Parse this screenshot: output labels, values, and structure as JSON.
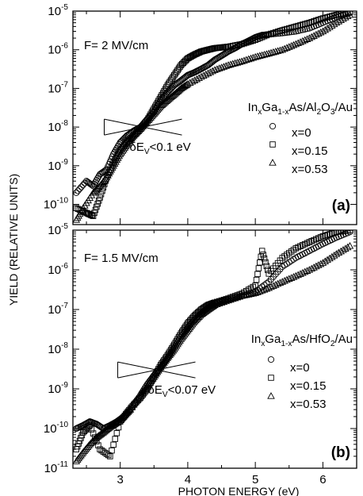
{
  "chart_data": {
    "type": "scatter",
    "shared_x_axis": {
      "label": "PHOTON ENERGY (eV)",
      "ticks": [
        3,
        4,
        5,
        6
      ],
      "range": [
        2.3,
        6.5
      ]
    },
    "shared_y_axis_label": "YIELD (RELATIVE UNITS)",
    "y_scale": "log",
    "panels": [
      {
        "id": "(a)",
        "field_label": "F= 2 MV/cm",
        "legend_title_parts": [
          "In",
          "x",
          "Ga",
          "1-x",
          "As/Al",
          "2",
          "O",
          "3",
          "/Au"
        ],
        "annotation_parts": [
          "δE",
          "V",
          "<0.1 eV"
        ],
        "annotation_point": {
          "x": 3.35,
          "y": 1e-08
        },
        "ylim": [
          3e-11,
          1e-05
        ],
        "y_ticks": [
          "10-5",
          "10-6",
          "10-7",
          "10-8",
          "10-9",
          "10-10"
        ],
        "series": [
          {
            "name": "x=0",
            "marker": "circle",
            "points": [
              [
                2.35,
                2e-10
              ],
              [
                2.5,
                4e-10
              ],
              [
                2.6,
                3e-10
              ],
              [
                2.7,
                6e-10
              ],
              [
                2.8,
                8e-10
              ],
              [
                2.9,
                2e-09
              ],
              [
                3.0,
                4e-09
              ],
              [
                3.1,
                6e-09
              ],
              [
                3.2,
                8e-09
              ],
              [
                3.3,
                1e-08
              ],
              [
                3.4,
                1.6e-08
              ],
              [
                3.5,
                2.5e-08
              ],
              [
                3.6,
                5e-08
              ],
              [
                3.7,
                8e-08
              ],
              [
                3.8,
                1.2e-07
              ],
              [
                3.9,
                1.6e-07
              ],
              [
                4.0,
                2.2e-07
              ],
              [
                4.1,
                2.6e-07
              ],
              [
                4.2,
                3.2e-07
              ],
              [
                4.3,
                4e-07
              ],
              [
                4.4,
                5.5e-07
              ],
              [
                4.5,
                7e-07
              ],
              [
                4.6,
                9e-07
              ],
              [
                4.7,
                1.1e-06
              ],
              [
                4.8,
                1.4e-06
              ],
              [
                4.9,
                1.7e-06
              ],
              [
                5.0,
                2.1e-06
              ],
              [
                5.1,
                2.4e-06
              ],
              [
                5.2,
                2.5e-06
              ],
              [
                5.4,
                2.7e-06
              ],
              [
                5.6,
                3e-06
              ],
              [
                5.8,
                3.6e-06
              ],
              [
                6.0,
                5e-06
              ],
              [
                6.2,
                7e-06
              ],
              [
                6.4,
                9e-06
              ]
            ]
          },
          {
            "name": "x=0.15",
            "marker": "square",
            "points": [
              [
                2.35,
                8e-11
              ],
              [
                2.5,
                6e-11
              ],
              [
                2.6,
                5e-11
              ],
              [
                2.7,
                1.5e-10
              ],
              [
                2.8,
                5e-10
              ],
              [
                2.9,
                1.2e-09
              ],
              [
                3.0,
                2.5e-09
              ],
              [
                3.1,
                4e-09
              ],
              [
                3.2,
                6e-09
              ],
              [
                3.3,
                9e-09
              ],
              [
                3.4,
                1.5e-08
              ],
              [
                3.5,
                3e-08
              ],
              [
                3.6,
                6e-08
              ],
              [
                3.7,
                1.2e-07
              ],
              [
                3.8,
                2.2e-07
              ],
              [
                3.9,
                4e-07
              ],
              [
                4.0,
                6e-07
              ],
              [
                4.1,
                7.5e-07
              ],
              [
                4.2,
                9e-07
              ],
              [
                4.3,
                1e-06
              ],
              [
                4.4,
                1.1e-06
              ],
              [
                4.5,
                1.15e-06
              ],
              [
                4.6,
                1.2e-06
              ],
              [
                4.8,
                1.4e-06
              ],
              [
                5.0,
                1.8e-06
              ],
              [
                5.2,
                2.5e-06
              ],
              [
                5.4,
                3.2e-06
              ],
              [
                5.6,
                4e-06
              ],
              [
                5.8,
                5e-06
              ],
              [
                6.0,
                6.5e-06
              ],
              [
                6.2,
                8e-06
              ],
              [
                6.4,
                9.5e-06
              ]
            ]
          },
          {
            "name": "x=0.53",
            "marker": "triangle",
            "points": [
              [
                2.35,
                4e-11
              ],
              [
                2.45,
                8e-11
              ],
              [
                2.6,
                2e-10
              ],
              [
                2.7,
                3e-10
              ],
              [
                2.8,
                5e-10
              ],
              [
                2.9,
                1e-09
              ],
              [
                3.0,
                2e-09
              ],
              [
                3.1,
                3.5e-09
              ],
              [
                3.2,
                6e-09
              ],
              [
                3.3,
                9e-09
              ],
              [
                3.4,
                1.4e-08
              ],
              [
                3.5,
                2.2e-08
              ],
              [
                3.6,
                3.5e-08
              ],
              [
                3.7,
                5e-08
              ],
              [
                3.8,
                7e-08
              ],
              [
                3.9,
                1e-07
              ],
              [
                4.0,
                1.3e-07
              ],
              [
                4.2,
                2e-07
              ],
              [
                4.4,
                3e-07
              ],
              [
                4.6,
                4e-07
              ],
              [
                4.8,
                5e-07
              ],
              [
                5.0,
                6.5e-07
              ],
              [
                5.2,
                8e-07
              ],
              [
                5.4,
                1e-06
              ],
              [
                5.6,
                1.4e-06
              ],
              [
                5.8,
                2e-06
              ],
              [
                6.0,
                3e-06
              ],
              [
                6.2,
                5e-06
              ],
              [
                6.4,
                8e-06
              ]
            ]
          }
        ]
      },
      {
        "id": "(b)",
        "field_label": "F= 1.5 MV/cm",
        "legend_title_parts": [
          "In",
          "x",
          "Ga",
          "1-x",
          "As/HfO",
          "2",
          "/Au"
        ],
        "annotation_parts": [
          "δE",
          "V",
          "<0.07 eV"
        ],
        "annotation_point": {
          "x": 3.55,
          "y": 3e-09
        },
        "ylim": [
          1e-11,
          1e-05
        ],
        "y_ticks": [
          "10-5",
          "10-6",
          "10-7",
          "10-8",
          "10-9",
          "10-10",
          "10-11"
        ],
        "series": [
          {
            "name": "x=0",
            "marker": "circle",
            "points": [
              [
                2.35,
                1e-10
              ],
              [
                2.45,
                1.2e-10
              ],
              [
                2.55,
                1.5e-10
              ],
              [
                2.65,
                1.3e-10
              ],
              [
                2.75,
                1e-10
              ],
              [
                2.85,
                1.2e-10
              ],
              [
                2.95,
                1.5e-10
              ],
              [
                3.05,
                2e-10
              ],
              [
                3.15,
                3e-10
              ],
              [
                3.3,
                7e-10
              ],
              [
                3.4,
                1.3e-09
              ],
              [
                3.5,
                2.2e-09
              ],
              [
                3.6,
                3.5e-09
              ],
              [
                3.7,
                6e-09
              ],
              [
                3.8,
                1.1e-08
              ],
              [
                3.9,
                2e-08
              ],
              [
                4.0,
                3.5e-08
              ],
              [
                4.1,
                5.5e-08
              ],
              [
                4.2,
                8e-08
              ],
              [
                4.3,
                1.1e-07
              ],
              [
                4.4,
                1.4e-07
              ],
              [
                4.5,
                1.6e-07
              ],
              [
                4.6,
                1.8e-07
              ],
              [
                4.8,
                2.2e-07
              ],
              [
                5.0,
                2.8e-07
              ],
              [
                5.2,
                5e-07
              ],
              [
                5.4,
                1.2e-06
              ],
              [
                5.6,
                2e-06
              ],
              [
                5.8,
                3e-06
              ],
              [
                6.0,
                4.5e-06
              ],
              [
                6.2,
                6.5e-06
              ],
              [
                6.4,
                9e-06
              ]
            ]
          },
          {
            "name": "x=0.15",
            "marker": "square",
            "points": [
              [
                2.35,
                3e-11
              ],
              [
                2.45,
                8e-11
              ],
              [
                2.55,
                1.2e-10
              ],
              [
                2.7,
                3e-11
              ],
              [
                2.85,
                2e-11
              ],
              [
                3.0,
                1.5e-10
              ],
              [
                3.1,
                2.5e-10
              ],
              [
                3.2,
                4e-10
              ],
              [
                3.3,
                6e-10
              ],
              [
                3.4,
                1e-09
              ],
              [
                3.5,
                2e-09
              ],
              [
                3.6,
                4e-09
              ],
              [
                3.7,
                7e-09
              ],
              [
                3.8,
                1.3e-08
              ],
              [
                3.9,
                2.5e-08
              ],
              [
                4.0,
                4.5e-08
              ],
              [
                4.1,
                7e-08
              ],
              [
                4.2,
                1e-07
              ],
              [
                4.3,
                1.3e-07
              ],
              [
                4.4,
                1.5e-07
              ],
              [
                4.6,
                1.9e-07
              ],
              [
                4.8,
                2.5e-07
              ],
              [
                5.0,
                4e-07
              ],
              [
                5.1,
                3e-06
              ],
              [
                5.2,
                8e-07
              ],
              [
                5.4,
                2e-06
              ],
              [
                5.6,
                3.5e-06
              ],
              [
                5.8,
                5e-06
              ],
              [
                6.0,
                7e-06
              ],
              [
                6.2,
                9e-06
              ],
              [
                6.4,
                1e-05
              ]
            ]
          },
          {
            "name": "x=0.53",
            "marker": "triangle",
            "points": [
              [
                2.35,
                1.5e-11
              ],
              [
                2.45,
                2.5e-11
              ],
              [
                2.55,
                4e-11
              ],
              [
                2.65,
                6e-11
              ],
              [
                2.75,
                8e-11
              ],
              [
                2.85,
                1.1e-10
              ],
              [
                2.95,
                1.4e-10
              ],
              [
                3.05,
                2e-10
              ],
              [
                3.15,
                3e-10
              ],
              [
                3.3,
                7e-10
              ],
              [
                3.4,
                1.2e-09
              ],
              [
                3.5,
                2e-09
              ],
              [
                3.6,
                3.5e-09
              ],
              [
                3.7,
                6e-09
              ],
              [
                3.8,
                1e-08
              ],
              [
                3.9,
                1.8e-08
              ],
              [
                4.0,
                3e-08
              ],
              [
                4.1,
                5e-08
              ],
              [
                4.2,
                7.5e-08
              ],
              [
                4.3,
                1e-07
              ],
              [
                4.4,
                1.3e-07
              ],
              [
                4.6,
                1.7e-07
              ],
              [
                4.8,
                2.2e-07
              ],
              [
                5.0,
                2.6e-07
              ],
              [
                5.2,
                3.5e-07
              ],
              [
                5.4,
                5e-07
              ],
              [
                5.6,
                7e-07
              ],
              [
                5.8,
                1e-06
              ],
              [
                6.0,
                1.5e-06
              ],
              [
                6.2,
                2.5e-06
              ],
              [
                6.4,
                4e-06
              ]
            ]
          }
        ]
      }
    ]
  }
}
